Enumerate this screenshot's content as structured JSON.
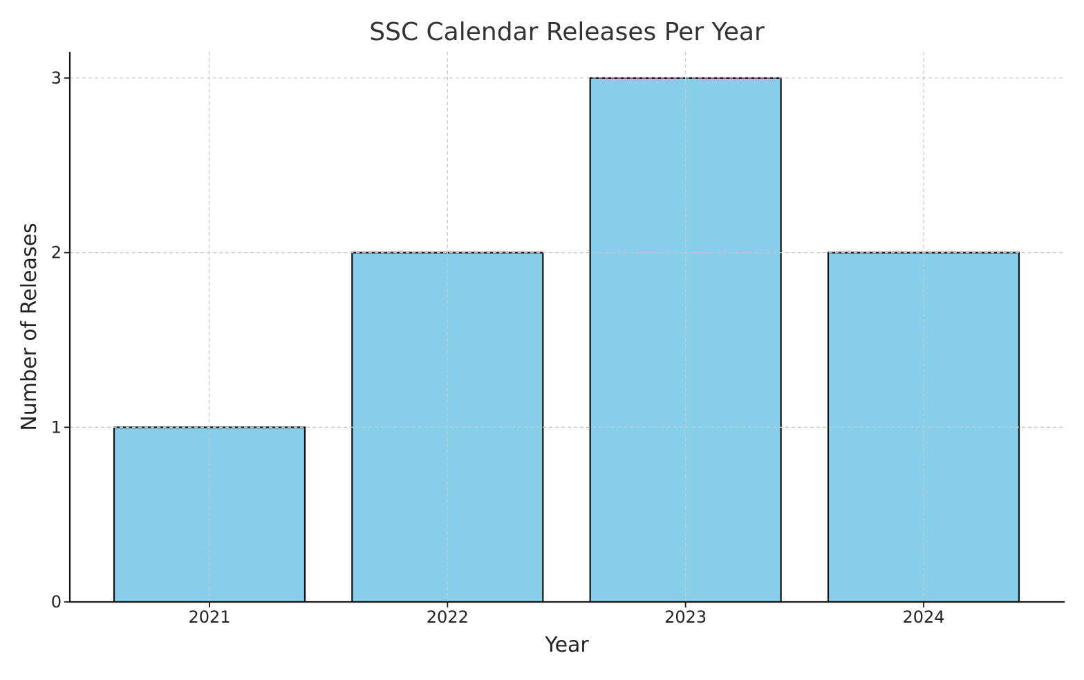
{
  "chart_data": {
    "type": "bar",
    "title": "SSC Calendar Releases Per Year",
    "xlabel": "Year",
    "ylabel": "Number of Releases",
    "categories": [
      "2021",
      "2022",
      "2023",
      "2024"
    ],
    "values": [
      1,
      2,
      3,
      2
    ],
    "ylim": [
      0,
      3.15
    ],
    "yticks": [
      0,
      1,
      2,
      3
    ],
    "grid": true,
    "bar_color": "#87CEEB",
    "bar_edge_color": "#111111"
  }
}
